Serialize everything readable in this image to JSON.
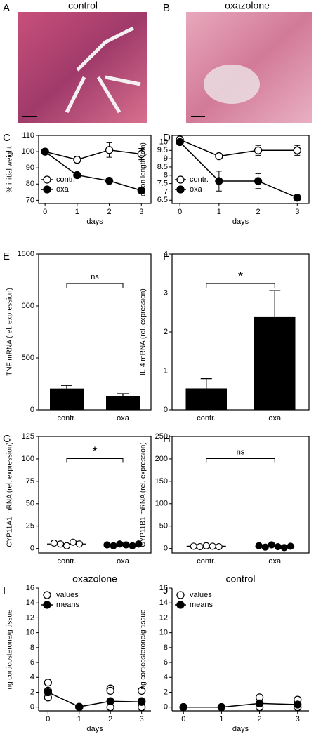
{
  "images": [
    {
      "panel": "A",
      "title": "control"
    },
    {
      "panel": "B",
      "title": "oxazolone"
    }
  ],
  "chart_data": [
    {
      "panel": "C",
      "type": "line",
      "xlabel": "days",
      "ylabel": "% initial weight",
      "xlim": [
        -0.2,
        3.3
      ],
      "xticks": [
        0,
        1,
        2,
        3
      ],
      "ylim": [
        68,
        110
      ],
      "yticks": [
        70,
        80,
        90,
        100,
        110
      ],
      "legend": "lower left",
      "frame": true,
      "series": [
        {
          "name": "contr.",
          "color": "#ffffff",
          "line": true,
          "x": [
            0,
            1,
            2,
            3
          ],
          "values": [
            100,
            95,
            101,
            98.5
          ],
          "errors": [
            0,
            1.8,
            4.5,
            3.5
          ]
        },
        {
          "name": "oxa",
          "color": "#000000",
          "line": true,
          "x": [
            0,
            1,
            2,
            3
          ],
          "values": [
            100,
            85.5,
            82,
            76
          ],
          "errors": [
            0,
            0,
            1.8,
            0
          ]
        }
      ]
    },
    {
      "panel": "D",
      "type": "line",
      "xlabel": "days",
      "ylabel": "colon length (cm)",
      "xlim": [
        -0.2,
        3.3
      ],
      "xticks": [
        0,
        1,
        2,
        3
      ],
      "ylim": [
        6.3,
        10.4
      ],
      "yticks": [
        6.5,
        7,
        7.5,
        8,
        8.5,
        9,
        9.5,
        10
      ],
      "legend": "lower left",
      "frame": true,
      "series": [
        {
          "name": "contr.",
          "color": "#ffffff",
          "line": true,
          "x": [
            0,
            1,
            2,
            3
          ],
          "values": [
            10.15,
            9.15,
            9.5,
            9.5
          ],
          "errors": [
            0,
            0.1,
            0.3,
            0.3
          ]
        },
        {
          "name": "oxa",
          "color": "#000000",
          "line": true,
          "x": [
            0,
            1,
            2,
            3
          ],
          "values": [
            10,
            7.65,
            7.65,
            6.65
          ],
          "errors": [
            0,
            0.6,
            0.45,
            0.1
          ]
        }
      ]
    },
    {
      "panel": "E",
      "type": "bar",
      "ylabel": "TNF mRNA (rel. expression)",
      "categories": [
        "contr.",
        "oxa"
      ],
      "values": [
        205,
        130
      ],
      "errors": [
        30,
        25
      ],
      "color": "#000000",
      "ylim": [
        0,
        1500
      ],
      "yticks": [
        0,
        500,
        {
          "value": 1000,
          "label": "000"
        },
        1500
      ],
      "annotation": "ns",
      "frame": true
    },
    {
      "panel": "F",
      "type": "bar",
      "ylabel": "IL-4 mRNA (rel. expression)",
      "categories": [
        "contr.",
        "oxa"
      ],
      "values": [
        0.55,
        2.38
      ],
      "errors": [
        0.25,
        0.68
      ],
      "color": "#000000",
      "ylim": [
        0,
        4
      ],
      "yticks": [
        0,
        1,
        2,
        3,
        4
      ],
      "annotation": "*",
      "frame": true
    },
    {
      "panel": "G",
      "type": "dot",
      "ylabel": "CYP11A1 mRNA (rel. expression)",
      "categories": [
        "contr.",
        "oxa"
      ],
      "colors": [
        "#ffffff",
        "#000000"
      ],
      "points": [
        [
          6,
          5,
          3,
          7,
          5
        ],
        [
          4,
          3,
          5,
          4,
          3,
          5
        ]
      ],
      "medians": [
        5,
        4
      ],
      "ylim": [
        -5,
        125
      ],
      "yticks": [
        0,
        25,
        50,
        75,
        100,
        125
      ],
      "annotation": "*",
      "frame": true
    },
    {
      "panel": "H",
      "type": "dot",
      "ylabel": "CYP11B1 mRNA (rel. expression)",
      "categories": [
        "contr.",
        "oxa"
      ],
      "colors": [
        "#ffffff",
        "#000000"
      ],
      "points": [
        [
          5,
          4,
          6,
          5,
          4
        ],
        [
          6,
          3,
          8,
          4,
          2,
          5
        ]
      ],
      "medians": [
        5,
        4
      ],
      "ylim": [
        -10,
        250
      ],
      "yticks": [
        0,
        50,
        100,
        150,
        200,
        250
      ],
      "annotation": "ns",
      "frame": true
    },
    {
      "panel": "I",
      "type": "line",
      "title": "oxazolone",
      "xlabel": "days",
      "ylabel": "ng corticosterone/g tissue",
      "xlim": [
        -0.3,
        3.3
      ],
      "xticks": [
        0,
        1,
        2,
        3
      ],
      "ylim": [
        -0.5,
        16
      ],
      "yticks": [
        0,
        2,
        4,
        6,
        8,
        10,
        12,
        14,
        16
      ],
      "legend": "upper left",
      "frame": false,
      "series": [
        {
          "name": "values",
          "color": "#ffffff",
          "line": false,
          "x": [
            0,
            0,
            0,
            1,
            1,
            2,
            2,
            2,
            3,
            3,
            3
          ],
          "values": [
            3.3,
            1.3,
            2.2,
            0,
            0,
            2.5,
            2.2,
            0,
            2.2,
            0.8,
            0
          ]
        },
        {
          "name": "means",
          "color": "#000000",
          "line": true,
          "x": [
            0,
            1,
            2,
            3
          ],
          "values": [
            2.0,
            0.05,
            0.8,
            0.7
          ]
        }
      ]
    },
    {
      "panel": "J",
      "type": "line",
      "title": "control",
      "xlabel": "days",
      "ylabel": "ng corticosterone/g tissue",
      "xlim": [
        -0.3,
        3.3
      ],
      "xticks": [
        0,
        1,
        2,
        3
      ],
      "ylim": [
        -0.5,
        16
      ],
      "yticks": [
        0,
        2,
        4,
        6,
        8,
        10,
        12,
        14,
        16
      ],
      "legend": "upper left",
      "frame": false,
      "series": [
        {
          "name": "values",
          "color": "#ffffff",
          "line": false,
          "x": [
            0,
            0,
            1,
            2,
            2,
            3,
            3
          ],
          "values": [
            0,
            0,
            0,
            1.3,
            0,
            1.0,
            0
          ]
        },
        {
          "name": "means",
          "color": "#000000",
          "line": true,
          "x": [
            0,
            1,
            2,
            3
          ],
          "values": [
            0,
            0,
            0.5,
            0.35
          ]
        }
      ]
    }
  ]
}
